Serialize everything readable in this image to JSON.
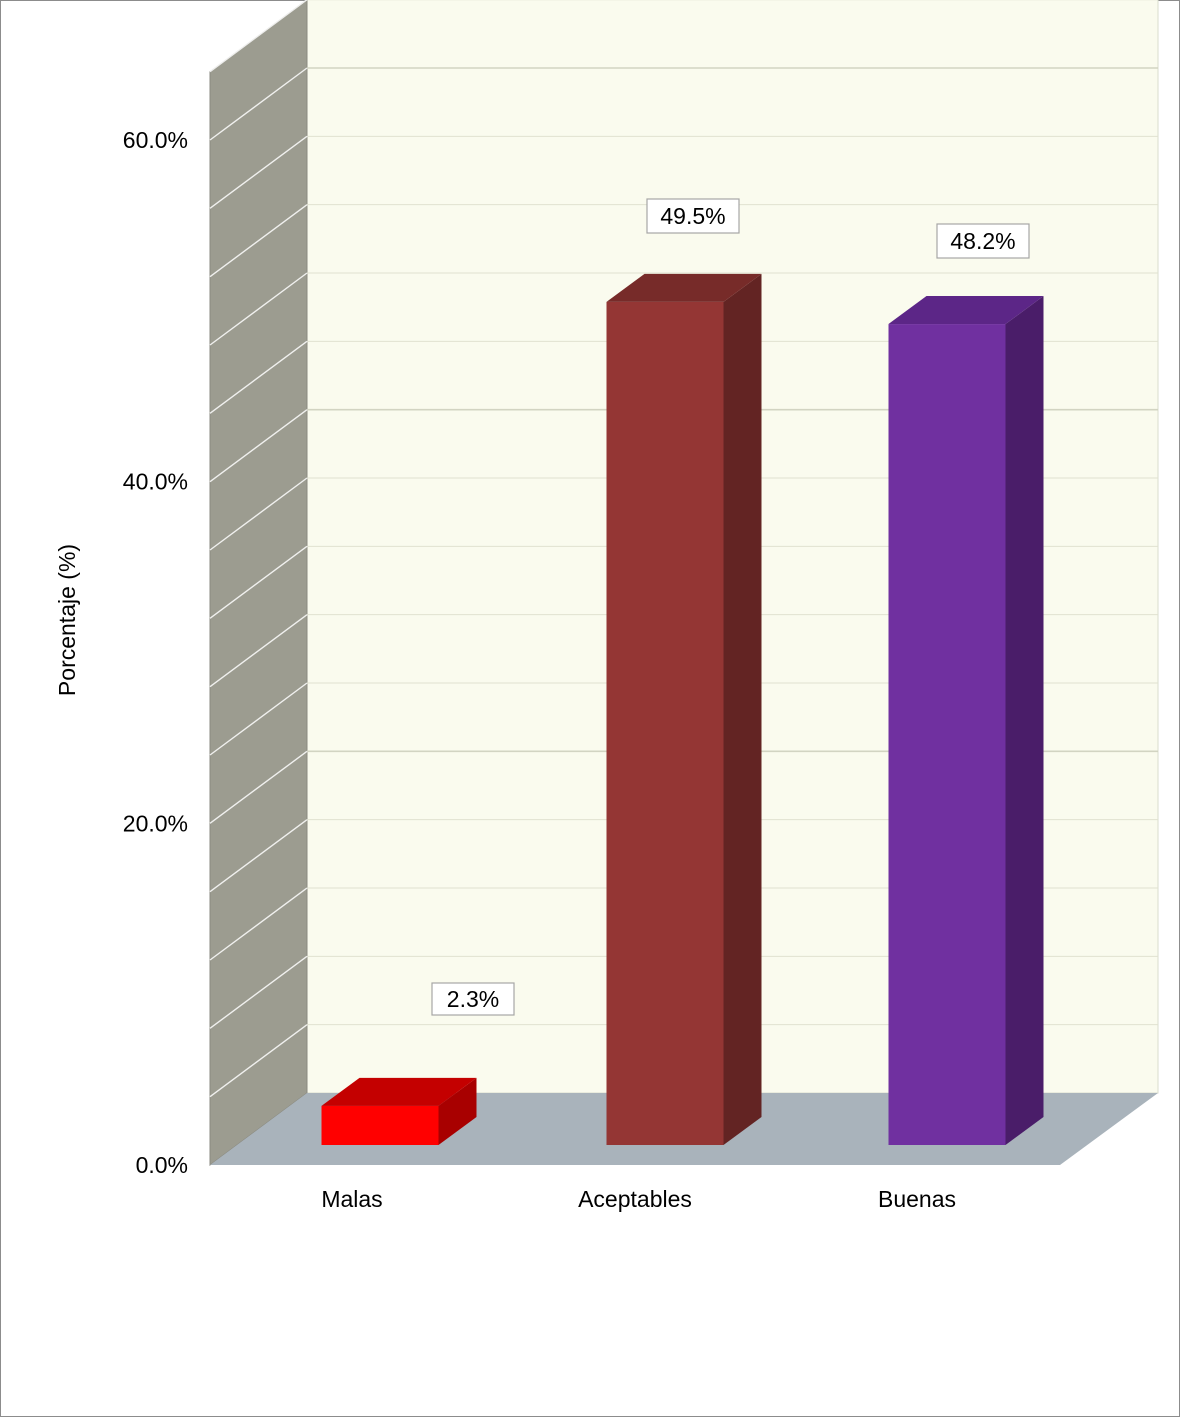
{
  "chart_data": {
    "type": "bar",
    "categories": [
      "Malas",
      "Aceptables",
      "Buenas"
    ],
    "values": [
      2.3,
      49.5,
      48.2
    ],
    "data_labels": [
      "2.3%",
      "49.5%",
      "48.2%"
    ],
    "ylabel": "Porcentaje (%)",
    "xlabel": "",
    "ylim": [
      0,
      60
    ],
    "yticks": [
      0,
      20,
      40,
      60
    ],
    "ytick_labels": [
      "0.0%",
      "20.0%",
      "40.0%",
      "60.0%"
    ],
    "grid": true,
    "style": "3d-column",
    "colors": {
      "series": [
        "#ff0000",
        "#943634",
        "#7030a0"
      ],
      "series_side": [
        "#a80000",
        "#632423",
        "#4a1d69"
      ],
      "series_top": [
        "#c40000",
        "#772b29",
        "#5c2687"
      ],
      "back_wall": "#fafbee",
      "side_wall": "#9c9c90",
      "floor": "#a9b3bb",
      "grid_line": "#e0e2d0"
    }
  }
}
